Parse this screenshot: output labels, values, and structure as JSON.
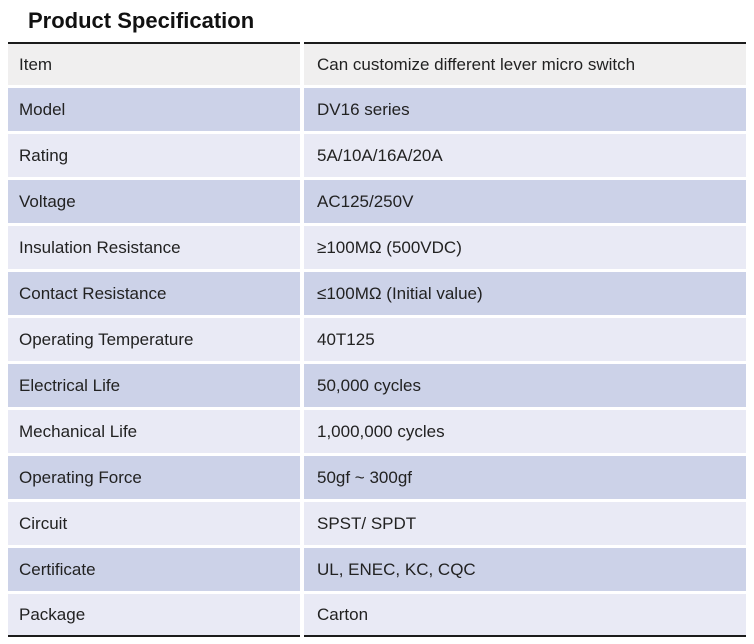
{
  "title": "Product Specification",
  "colors": {
    "row_dark_lavender": "#ccd2e8",
    "row_light_lavender": "#e9eaf5",
    "header_row_gray": "#f0efef",
    "rule_dark": "#1b1b1b",
    "text": "#222222"
  },
  "table": {
    "rows": [
      {
        "label": "Item",
        "value": "Can customize different lever micro switch"
      },
      {
        "label": "Model",
        "value": "DV16 series"
      },
      {
        "label": "Rating",
        "value": "5A/10A/16A/20A"
      },
      {
        "label": "Voltage",
        "value": "AC125/250V"
      },
      {
        "label": "Insulation Resistance",
        "value": "≥100MΩ (500VDC)"
      },
      {
        "label": "Contact Resistance",
        "value": "≤100MΩ (Initial value)"
      },
      {
        "label": "Operating Temperature",
        "value": "40T125"
      },
      {
        "label": "Electrical Life",
        "value": "50,000 cycles"
      },
      {
        "label": "Mechanical Life",
        "value": "1,000,000 cycles"
      },
      {
        "label": "Operating Force",
        "value": "50gf ~ 300gf"
      },
      {
        "label": "Circuit",
        "value": "SPST/ SPDT"
      },
      {
        "label": "Certificate",
        "value": "UL, ENEC, KC, CQC"
      },
      {
        "label": "Package",
        "value": "Carton"
      }
    ]
  }
}
